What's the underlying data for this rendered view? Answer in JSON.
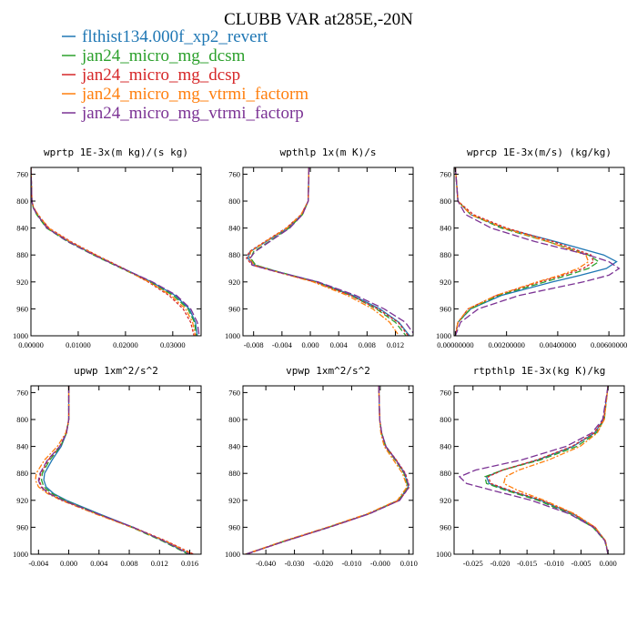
{
  "title": "CLUBB VAR at285E,-20N",
  "legend": [
    {
      "label": "flthist134.000f_xp2_revert",
      "color": "#1f77b4"
    },
    {
      "label": "jan24_micro_mg_dcsm",
      "color": "#2ca02c"
    },
    {
      "label": "jan24_micro_mg_dcsp",
      "color": "#d62728"
    },
    {
      "label": "jan24_micro_mg_vtrmi_factorm",
      "color": "#ff7f0e"
    },
    {
      "label": "jan24_micro_mg_vtrmi_factorp",
      "color": "#7b3294"
    }
  ],
  "chart_data": [
    {
      "type": "line",
      "title": "wprtp  1E-3x(m kg)/(s kg)",
      "y_ticks": [
        "760",
        "800",
        "840",
        "880",
        "920",
        "960",
        "1000"
      ],
      "ylim": [
        1000,
        750
      ],
      "x_ticks": [
        "0.00000",
        "0.01000",
        "0.02000",
        "0.03000"
      ],
      "x_tick_values": [
        0,
        0.01,
        0.02,
        0.03
      ],
      "xlim": [
        0,
        0.036
      ],
      "y": [
        750,
        800,
        810,
        820,
        840,
        860,
        880,
        900,
        920,
        940,
        960,
        980,
        1000
      ],
      "series": [
        {
          "color": "#1f77b4",
          "values": [
            0.0,
            0.0002,
            0.0005,
            0.0013,
            0.0035,
            0.008,
            0.0135,
            0.0195,
            0.0255,
            0.0305,
            0.0335,
            0.0348,
            0.0352
          ]
        },
        {
          "color": "#2ca02c",
          "values": [
            0.0,
            0.0002,
            0.0005,
            0.0012,
            0.0033,
            0.0077,
            0.0132,
            0.0192,
            0.0251,
            0.0301,
            0.0332,
            0.0346,
            0.035
          ]
        },
        {
          "color": "#d62728",
          "values": [
            0.0,
            0.0002,
            0.0006,
            0.0015,
            0.0038,
            0.0084,
            0.0138,
            0.0196,
            0.0248,
            0.0292,
            0.0322,
            0.0338,
            0.0345
          ]
        },
        {
          "color": "#ff7f0e",
          "values": [
            0.0,
            0.0002,
            0.0006,
            0.0015,
            0.0037,
            0.0082,
            0.0137,
            0.0194,
            0.025,
            0.0296,
            0.0327,
            0.0342,
            0.0348
          ]
        },
        {
          "color": "#7b3294",
          "values": [
            0.0,
            0.0002,
            0.0005,
            0.0013,
            0.0034,
            0.0078,
            0.0133,
            0.0194,
            0.0257,
            0.0308,
            0.0338,
            0.0352,
            0.0356
          ]
        }
      ]
    },
    {
      "type": "line",
      "title": "wpthlp  1x(m K)/s",
      "y_ticks": [
        "760",
        "800",
        "840",
        "880",
        "920",
        "960",
        "1000"
      ],
      "ylim": [
        1000,
        750
      ],
      "x_ticks": [
        "-0.008",
        "-0.004",
        "0.000",
        "0.004",
        "0.008",
        "0.012"
      ],
      "x_tick_values": [
        -0.008,
        -0.004,
        0,
        0.004,
        0.008,
        0.012
      ],
      "xlim": [
        -0.0095,
        0.0145
      ],
      "y": [
        750,
        800,
        820,
        840,
        860,
        875,
        885,
        895,
        905,
        920,
        940,
        960,
        980,
        1000
      ],
      "series": [
        {
          "color": "#1f77b4",
          "values": [
            -0.0002,
            -0.0003,
            -0.0012,
            -0.0032,
            -0.0062,
            -0.0085,
            -0.0088,
            -0.0078,
            -0.0045,
            0.001,
            0.006,
            0.0098,
            0.0125,
            0.014
          ]
        },
        {
          "color": "#2ca02c",
          "values": [
            -0.0002,
            -0.0003,
            -0.0011,
            -0.003,
            -0.0058,
            -0.008,
            -0.0084,
            -0.0077,
            -0.0045,
            0.0008,
            0.0057,
            0.0093,
            0.012,
            0.0135
          ]
        },
        {
          "color": "#d62728",
          "values": [
            -0.0002,
            -0.0003,
            -0.0013,
            -0.0034,
            -0.0064,
            -0.0086,
            -0.009,
            -0.0082,
            -0.0048,
            0.0006,
            0.0057,
            0.0095,
            0.0124,
            0.0138
          ]
        },
        {
          "color": "#ff7f0e",
          "values": [
            -0.0002,
            -0.0003,
            -0.0013,
            -0.0033,
            -0.0063,
            -0.0084,
            -0.0086,
            -0.0079,
            -0.0047,
            0.0004,
            0.0052,
            0.0088,
            0.0112,
            0.0125
          ]
        },
        {
          "color": "#7b3294",
          "values": [
            -0.0002,
            -0.0003,
            -0.0011,
            -0.0029,
            -0.0057,
            -0.0078,
            -0.0085,
            -0.0082,
            -0.0047,
            0.0011,
            0.0064,
            0.0104,
            0.0134,
            0.0148
          ]
        }
      ]
    },
    {
      "type": "line",
      "title": "wprcp  1E-3x(m/s) (kg/kg)",
      "y_ticks": [
        "760",
        "800",
        "840",
        "880",
        "920",
        "960",
        "1000"
      ],
      "ylim": [
        1000,
        750
      ],
      "x_ticks": [
        "0.00000000",
        "0.00200000",
        "0.00400000",
        "0.00600000"
      ],
      "x_tick_values": [
        0,
        0.002,
        0.004,
        0.006
      ],
      "xlim": [
        -5e-05,
        0.0066
      ],
      "y": [
        750,
        800,
        820,
        840,
        860,
        880,
        890,
        900,
        910,
        920,
        940,
        960,
        980,
        1000
      ],
      "series": [
        {
          "color": "#1f77b4",
          "values": [
            0.0,
            0.0001,
            0.0006,
            0.0019,
            0.0039,
            0.0058,
            0.0063,
            0.0059,
            0.0049,
            0.0038,
            0.0018,
            0.0006,
            0.0001,
            0.0
          ]
        },
        {
          "color": "#2ca02c",
          "values": [
            0.0,
            0.0001,
            0.0006,
            0.0018,
            0.0036,
            0.0052,
            0.0056,
            0.0052,
            0.0044,
            0.0035,
            0.0017,
            0.0006,
            0.0001,
            0.0
          ]
        },
        {
          "color": "#d62728",
          "values": [
            0.0,
            0.0001,
            0.0007,
            0.002,
            0.0038,
            0.0053,
            0.0054,
            0.005,
            0.0042,
            0.0033,
            0.0016,
            0.0005,
            0.0001,
            0.0
          ]
        },
        {
          "color": "#ff7f0e",
          "values": [
            0.0,
            0.0001,
            0.0006,
            0.0019,
            0.0036,
            0.0051,
            0.0052,
            0.0048,
            0.0041,
            0.0032,
            0.0016,
            0.0005,
            0.0001,
            0.0
          ]
        },
        {
          "color": "#7b3294",
          "values": [
            0.0,
            0.0001,
            0.0004,
            0.0014,
            0.0031,
            0.0052,
            0.006,
            0.0064,
            0.006,
            0.005,
            0.0025,
            0.0009,
            0.0002,
            0.0
          ]
        }
      ]
    },
    {
      "type": "line",
      "title": "upwp  1xm^2/s^2",
      "y_ticks": [
        "760",
        "800",
        "840",
        "880",
        "920",
        "960",
        "1000"
      ],
      "ylim": [
        1000,
        750
      ],
      "x_ticks": [
        "-0.004",
        "0.000",
        "0.004",
        "0.008",
        "0.012",
        "0.016"
      ],
      "x_tick_values": [
        -0.004,
        0,
        0.004,
        0.008,
        0.012,
        0.016
      ],
      "xlim": [
        -0.005,
        0.0175
      ],
      "y": [
        750,
        800,
        820,
        840,
        860,
        880,
        890,
        900,
        910,
        920,
        940,
        960,
        980,
        1000
      ],
      "series": [
        {
          "color": "#1f77b4",
          "values": [
            0.0,
            0.0,
            -0.0003,
            -0.001,
            -0.0022,
            -0.0032,
            -0.0033,
            -0.003,
            -0.002,
            -0.0003,
            0.004,
            0.0085,
            0.0125,
            0.016
          ]
        },
        {
          "color": "#2ca02c",
          "values": [
            0.0,
            0.0,
            -0.0003,
            -0.0011,
            -0.0025,
            -0.0035,
            -0.0036,
            -0.0033,
            -0.0022,
            -0.0005,
            0.0038,
            0.0083,
            0.0123,
            0.0158
          ]
        },
        {
          "color": "#d62728",
          "values": [
            0.0,
            0.0,
            -0.0003,
            -0.0012,
            -0.0027,
            -0.0037,
            -0.0039,
            -0.0036,
            -0.0025,
            -0.0008,
            0.0037,
            0.0085,
            0.0128,
            0.0165
          ]
        },
        {
          "color": "#ff7f0e",
          "values": [
            0.0,
            0.0,
            -0.0004,
            -0.0015,
            -0.0032,
            -0.0043,
            -0.0044,
            -0.004,
            -0.0028,
            -0.001,
            0.0035,
            0.0083,
            0.0127,
            0.0163
          ]
        },
        {
          "color": "#7b3294",
          "values": [
            0.0,
            0.0,
            -0.0003,
            -0.0012,
            -0.0028,
            -0.0038,
            -0.004,
            -0.0037,
            -0.0026,
            -0.0008,
            0.0038,
            0.0085,
            0.0125,
            0.016
          ]
        }
      ]
    },
    {
      "type": "line",
      "title": "vpwp  1xm^2/s^2",
      "y_ticks": [
        "760",
        "800",
        "840",
        "880",
        "920",
        "960",
        "1000"
      ],
      "ylim": [
        1000,
        750
      ],
      "x_ticks": [
        "-0.040",
        "-0.030",
        "-0.020",
        "-0.010",
        "-0.000",
        "0.010"
      ],
      "x_tick_values": [
        -0.04,
        -0.03,
        -0.02,
        -0.01,
        0,
        0.01
      ],
      "xlim": [
        -0.048,
        0.0115
      ],
      "y": [
        750,
        800,
        820,
        840,
        860,
        880,
        900,
        920,
        940,
        960,
        980,
        1000
      ],
      "series": [
        {
          "color": "#1f77b4",
          "values": [
            -0.0005,
            -0.0002,
            0.0005,
            0.002,
            0.0055,
            0.0085,
            0.0098,
            0.0065,
            -0.004,
            -0.018,
            -0.033,
            -0.047
          ]
        },
        {
          "color": "#2ca02c",
          "values": [
            -0.0005,
            -0.0002,
            0.0004,
            0.0018,
            0.0052,
            0.0083,
            0.0097,
            0.0063,
            -0.0042,
            -0.0182,
            -0.0332,
            -0.047
          ]
        },
        {
          "color": "#d62728",
          "values": [
            -0.0005,
            -0.0002,
            0.0005,
            0.002,
            0.0056,
            0.0088,
            0.0102,
            0.0067,
            -0.0038,
            -0.0178,
            -0.0328,
            -0.0468
          ]
        },
        {
          "color": "#ff7f0e",
          "values": [
            -0.0005,
            -0.0002,
            0.0002,
            0.0014,
            0.0046,
            0.0078,
            0.0094,
            0.006,
            -0.0045,
            -0.0185,
            -0.0335,
            -0.0472
          ]
        },
        {
          "color": "#7b3294",
          "values": [
            -0.0005,
            -0.0002,
            0.0005,
            0.0019,
            0.0054,
            0.0086,
            0.0101,
            0.0068,
            -0.0038,
            -0.0178,
            -0.0328,
            -0.047
          ]
        }
      ]
    },
    {
      "type": "line",
      "title": "rtpthlp  1E-3x(kg K)/kg",
      "y_ticks": [
        "760",
        "800",
        "840",
        "880",
        "920",
        "960",
        "1000"
      ],
      "ylim": [
        1000,
        750
      ],
      "x_ticks": [
        "-0.025",
        "-0.020",
        "-0.015",
        "-0.010",
        "-0.005",
        "0.000"
      ],
      "x_tick_values": [
        -0.025,
        -0.02,
        -0.015,
        -0.01,
        -0.005,
        0
      ],
      "xlim": [
        -0.0285,
        0.003
      ],
      "y": [
        750,
        800,
        820,
        840,
        860,
        875,
        885,
        895,
        905,
        920,
        940,
        960,
        980,
        1000
      ],
      "series": [
        {
          "color": "#1f77b4",
          "values": [
            0.0,
            -0.0008,
            -0.0025,
            -0.0065,
            -0.013,
            -0.0195,
            -0.0225,
            -0.022,
            -0.0185,
            -0.0125,
            -0.0065,
            -0.0025,
            -0.0005,
            0.0
          ]
        },
        {
          "color": "#2ca02c",
          "values": [
            0.0,
            -0.0007,
            -0.0022,
            -0.0058,
            -0.0125,
            -0.0195,
            -0.0228,
            -0.0225,
            -0.019,
            -0.013,
            -0.007,
            -0.0028,
            -0.0006,
            0.0
          ]
        },
        {
          "color": "#d62728",
          "values": [
            0.0,
            -0.0008,
            -0.0026,
            -0.0067,
            -0.0132,
            -0.0195,
            -0.0222,
            -0.0217,
            -0.0182,
            -0.0122,
            -0.0064,
            -0.0024,
            -0.0005,
            0.0
          ]
        },
        {
          "color": "#ff7f0e",
          "values": [
            0.0,
            -0.0007,
            -0.002,
            -0.0052,
            -0.011,
            -0.0165,
            -0.019,
            -0.0193,
            -0.0168,
            -0.0118,
            -0.0062,
            -0.0024,
            -0.0005,
            0.0
          ]
        },
        {
          "color": "#7b3294",
          "values": [
            0.0,
            -0.001,
            -0.003,
            -0.0078,
            -0.016,
            -0.0245,
            -0.0275,
            -0.0262,
            -0.0215,
            -0.0142,
            -0.0072,
            -0.0027,
            -0.0006,
            0.0
          ]
        }
      ]
    }
  ]
}
